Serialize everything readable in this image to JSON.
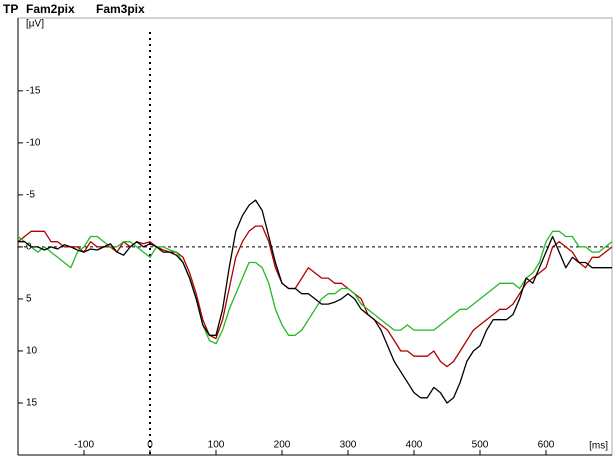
{
  "chart_data": {
    "type": "line",
    "channel": "TP",
    "x_label": "[ms]",
    "y_label": "[µV]",
    "xlim": [
      -200,
      700
    ],
    "xticks": [
      -100,
      0,
      100,
      200,
      300,
      400,
      500,
      600
    ],
    "ylim": [
      -22,
      20
    ],
    "yticks": [
      -15,
      -10,
      -5,
      0,
      5,
      10,
      15
    ],
    "y_inverted": true,
    "zero_lines": true,
    "x": [
      -200,
      -190,
      -180,
      -170,
      -160,
      -150,
      -140,
      -130,
      -120,
      -110,
      -100,
      -90,
      -80,
      -70,
      -60,
      -50,
      -40,
      -30,
      -20,
      -10,
      0,
      10,
      20,
      30,
      40,
      50,
      60,
      70,
      80,
      90,
      100,
      110,
      120,
      130,
      140,
      150,
      160,
      170,
      180,
      190,
      200,
      210,
      220,
      230,
      240,
      250,
      260,
      270,
      280,
      290,
      300,
      310,
      320,
      330,
      340,
      350,
      360,
      370,
      380,
      390,
      400,
      410,
      420,
      430,
      440,
      450,
      460,
      470,
      480,
      490,
      500,
      510,
      520,
      530,
      540,
      550,
      560,
      570,
      580,
      590,
      600,
      610,
      620,
      630,
      640,
      650,
      660,
      670,
      680,
      690,
      700
    ],
    "series": [
      {
        "name": "Fam2pix",
        "color": "#b00000",
        "values": [
          -0.5,
          -1,
          -1.5,
          -1.5,
          -1.5,
          -0.5,
          -0.5,
          0,
          0,
          0,
          0.5,
          -0.5,
          0,
          0,
          0,
          0.5,
          -0.5,
          0,
          -0.5,
          -0.3,
          -0.5,
          0,
          0.3,
          0.5,
          0.5,
          1,
          2.5,
          4.5,
          7,
          8.5,
          8.8,
          7,
          4,
          1,
          -0.5,
          -1.5,
          -2,
          -2,
          -0.5,
          2,
          3.5,
          4,
          4,
          3,
          2,
          2.5,
          3,
          3,
          3.5,
          3.5,
          4,
          4.5,
          5,
          6.5,
          7,
          7.5,
          8,
          9,
          10,
          10,
          10.5,
          10.5,
          10.5,
          10,
          11,
          11.5,
          11,
          10,
          9,
          8,
          7.5,
          7,
          6.5,
          6,
          6,
          5.5,
          4.5,
          3.5,
          3,
          2.5,
          2,
          0,
          -0.5,
          0,
          0.5,
          1.5,
          2,
          1,
          1,
          0.5,
          0
        ]
      },
      {
        "name": "Fam3pix",
        "color": "#22bb22",
        "values": [
          -1,
          -0.5,
          0,
          0.5,
          0,
          0.5,
          1,
          1.5,
          2,
          0.5,
          0,
          -1,
          -1,
          -0.5,
          0,
          0,
          -0.5,
          -0.5,
          0,
          0.5,
          1,
          0,
          0,
          0.3,
          0.5,
          1.5,
          3,
          5,
          7.5,
          9,
          9.3,
          8,
          6,
          4.5,
          3,
          1.5,
          1.5,
          2,
          3.5,
          6,
          7.5,
          8.5,
          8.5,
          8,
          7,
          6,
          5,
          4.5,
          4.5,
          4,
          4,
          4.5,
          5.5,
          6,
          6.5,
          7,
          7.5,
          8,
          8,
          7.5,
          8,
          8,
          8,
          8,
          7.5,
          7,
          6.5,
          6,
          6,
          5.5,
          5,
          4.5,
          4,
          3.5,
          3.5,
          3.5,
          4,
          3,
          2.5,
          1.5,
          -0.5,
          -1.5,
          -1.5,
          -1,
          -1,
          0,
          0,
          0.5,
          0.5,
          0,
          -0.5
        ]
      },
      {
        "name": "TP",
        "color": "#000000",
        "values": [
          -0.5,
          -0.5,
          0,
          0,
          0.3,
          0,
          0.2,
          -0.2,
          0,
          0.3,
          0.5,
          0.2,
          0.3,
          0,
          -0.3,
          0.5,
          0.8,
          0,
          -0.5,
          0,
          -0.3,
          0,
          0.5,
          0.5,
          0.8,
          1.5,
          3,
          5,
          7.5,
          8.5,
          8.5,
          6,
          2,
          -1.5,
          -3,
          -4,
          -4.5,
          -3.5,
          -1,
          1.5,
          3.5,
          4,
          4,
          4.5,
          4.5,
          5,
          5.5,
          5.5,
          5.3,
          5,
          4.5,
          5,
          6,
          6.5,
          7,
          8,
          9.5,
          11,
          12,
          13,
          14,
          14.5,
          14.5,
          13.5,
          14,
          15,
          14.5,
          13,
          11,
          10,
          9.5,
          8,
          7,
          7,
          7,
          6.5,
          5,
          3,
          3.5,
          2,
          0.5,
          -1,
          0.5,
          2,
          1,
          1.5,
          1.5,
          2,
          2,
          2,
          2
        ]
      }
    ]
  }
}
